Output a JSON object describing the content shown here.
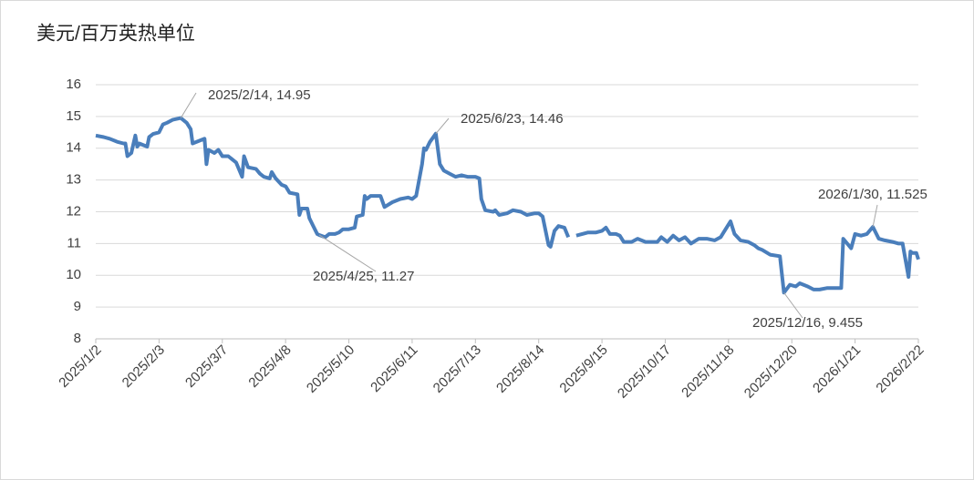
{
  "chart_data": {
    "type": "line",
    "title": "美元/百万英热单位",
    "x": [
      "2025/1/2",
      "2025/1/6",
      "2025/1/9",
      "2025/1/13",
      "2025/1/16",
      "2025/1/17",
      "2025/1/18",
      "2025/1/20",
      "2025/1/22",
      "2025/1/23",
      "2025/1/24",
      "2025/1/28",
      "2025/1/29",
      "2025/1/31",
      "2025/2/3",
      "2025/2/5",
      "2025/2/7",
      "2025/2/10",
      "2025/2/14",
      "2025/2/17",
      "2025/2/19",
      "2025/2/20",
      "2025/2/24",
      "2025/2/26",
      "2025/2/27",
      "2025/2/28",
      "2025/3/3",
      "2025/3/5",
      "2025/3/7",
      "2025/3/10",
      "2025/3/14",
      "2025/3/17",
      "2025/3/18",
      "2025/3/20",
      "2025/3/24",
      "2025/3/26",
      "2025/3/28",
      "2025/3/31",
      "2025/4/1",
      "2025/4/3",
      "2025/4/6",
      "2025/4/8",
      "2025/4/10",
      "2025/4/14",
      "2025/4/15",
      "2025/4/16",
      "2025/4/19",
      "2025/4/20",
      "2025/4/22",
      "2025/4/24",
      "2025/4/25",
      "2025/4/28",
      "2025/4/30",
      "2025/5/3",
      "2025/5/5",
      "2025/5/7",
      "2025/5/10",
      "2025/5/13",
      "2025/5/14",
      "2025/5/17",
      "2025/5/18",
      "2025/5/19",
      "2025/5/21",
      "2025/5/26",
      "2025/5/28",
      "2025/6/1",
      "2025/6/5",
      "2025/6/9",
      "2025/6/11",
      "2025/6/13",
      "2025/6/16",
      "2025/6/17",
      "2025/6/18",
      "2025/6/20",
      "2025/6/23",
      "2025/6/25",
      "2025/6/27",
      "2025/6/30",
      "2025/7/3",
      "2025/7/6",
      "2025/7/9",
      "2025/7/13",
      "2025/7/15",
      "2025/7/16",
      "2025/7/18",
      "2025/7/22",
      "2025/7/23",
      "2025/7/25",
      "2025/7/29",
      "2025/8/1",
      "2025/8/5",
      "2025/8/8",
      "2025/8/12",
      "2025/8/14",
      "2025/8/16",
      "2025/8/19",
      "2025/8/20",
      "2025/8/22",
      "2025/8/24",
      "2025/8/27",
      "2025/8/29",
      "2025/8/31",
      "2025/9/2",
      "2025/9/5",
      "2025/9/8",
      "2025/9/12",
      "2025/9/15",
      "2025/9/17",
      "2025/9/19",
      "2025/9/22",
      "2025/9/24",
      "2025/9/26",
      "2025/9/30",
      "2025/10/3",
      "2025/10/7",
      "2025/10/10",
      "2025/10/13",
      "2025/10/15",
      "2025/10/18",
      "2025/10/21",
      "2025/10/24",
      "2025/10/27",
      "2025/10/30",
      "2025/11/3",
      "2025/11/7",
      "2025/11/11",
      "2025/11/14",
      "2025/11/17",
      "2025/11/19",
      "2025/11/21",
      "2025/11/24",
      "2025/11/28",
      "2025/12/1",
      "2025/12/3",
      "2025/12/5",
      "2025/12/9",
      "2025/12/14",
      "2025/12/16",
      "2025/12/19",
      "2025/12/22",
      "2025/12/24",
      "2025/12/28",
      "2025/12/31",
      "2026/1/3",
      "2026/1/7",
      "2026/1/12",
      "2026/1/14",
      "2026/1/15",
      "2026/1/19",
      "2026/1/21",
      "2026/1/24",
      "2026/1/27",
      "2026/1/30",
      "2026/2/2",
      "2026/2/5",
      "2026/2/9",
      "2026/2/12",
      "2026/2/14",
      "2026/2/17",
      "2026/2/18",
      "2026/2/19",
      "2026/2/21",
      "2026/2/22"
    ],
    "series": [
      {
        "color": "#4a7ebb",
        "values": [
          14.4,
          14.35,
          14.3,
          14.2,
          14.15,
          14.15,
          13.75,
          13.85,
          14.4,
          14.05,
          14.15,
          14.05,
          14.35,
          14.45,
          14.5,
          14.75,
          14.8,
          14.9,
          14.95,
          14.8,
          14.6,
          14.15,
          14.25,
          14.3,
          13.5,
          13.95,
          13.85,
          13.95,
          13.75,
          13.75,
          13.55,
          13.1,
          13.75,
          13.4,
          13.35,
          13.2,
          13.1,
          13.05,
          13.25,
          13.05,
          12.85,
          12.8,
          12.6,
          12.55,
          11.9,
          12.1,
          12.1,
          11.8,
          11.55,
          11.3,
          11.27,
          11.2,
          11.3,
          11.3,
          11.35,
          11.45,
          11.45,
          11.5,
          11.85,
          11.9,
          12.5,
          12.4,
          12.5,
          12.5,
          12.15,
          12.3,
          12.4,
          12.45,
          12.4,
          12.5,
          13.5,
          14.0,
          13.95,
          14.2,
          14.46,
          13.5,
          13.3,
          13.2,
          13.1,
          13.15,
          13.1,
          13.1,
          13.05,
          12.4,
          12.05,
          12.0,
          12.05,
          11.9,
          11.95,
          12.05,
          12.0,
          11.9,
          11.95,
          11.95,
          11.85,
          10.95,
          10.9,
          11.4,
          11.55,
          11.5,
          11.2,
          null,
          11.25,
          11.3,
          11.35,
          11.35,
          11.4,
          11.5,
          11.3,
          11.3,
          11.25,
          11.05,
          11.05,
          11.15,
          11.05,
          11.05,
          11.05,
          11.2,
          11.05,
          11.25,
          11.1,
          11.2,
          11.0,
          11.15,
          11.15,
          11.1,
          11.2,
          11.5,
          11.7,
          11.3,
          11.1,
          11.05,
          10.95,
          10.85,
          10.8,
          10.65,
          10.6,
          9.455,
          9.7,
          9.65,
          9.75,
          9.65,
          9.55,
          9.55,
          9.6,
          9.6,
          9.6,
          11.15,
          10.85,
          11.3,
          11.25,
          11.3,
          11.525,
          11.15,
          11.1,
          11.05,
          11.0,
          11.0,
          9.95,
          10.75,
          10.7,
          10.7,
          10.5
        ]
      }
    ],
    "xlim": [
      "2025/1/2",
      "2026/2/22"
    ],
    "xticks": [
      "2025/1/2",
      "2025/2/3",
      "2025/3/7",
      "2025/4/8",
      "2025/5/10",
      "2025/6/11",
      "2025/7/13",
      "2025/8/14",
      "2025/9/15",
      "2025/10/17",
      "2025/11/18",
      "2025/12/20",
      "2026/1/21",
      "2026/2/22"
    ],
    "ylim": [
      8,
      16
    ],
    "yticks": [
      8,
      9,
      10,
      11,
      12,
      13,
      14,
      15,
      16
    ],
    "grid": true,
    "annotations": [
      {
        "label": "2025/2/14, 14.95",
        "x": "2025/2/14",
        "y": 14.95
      },
      {
        "label": "2025/6/23, 14.46",
        "x": "2025/6/23",
        "y": 14.46
      },
      {
        "label": "2025/4/25, 11.27",
        "x": "2025/4/25",
        "y": 11.27
      },
      {
        "label": "2025/12/16, 9.455",
        "x": "2025/12/16",
        "y": 9.455
      },
      {
        "label": "2026/1/30, 11.525",
        "x": "2026/1/30",
        "y": 11.525
      }
    ]
  }
}
